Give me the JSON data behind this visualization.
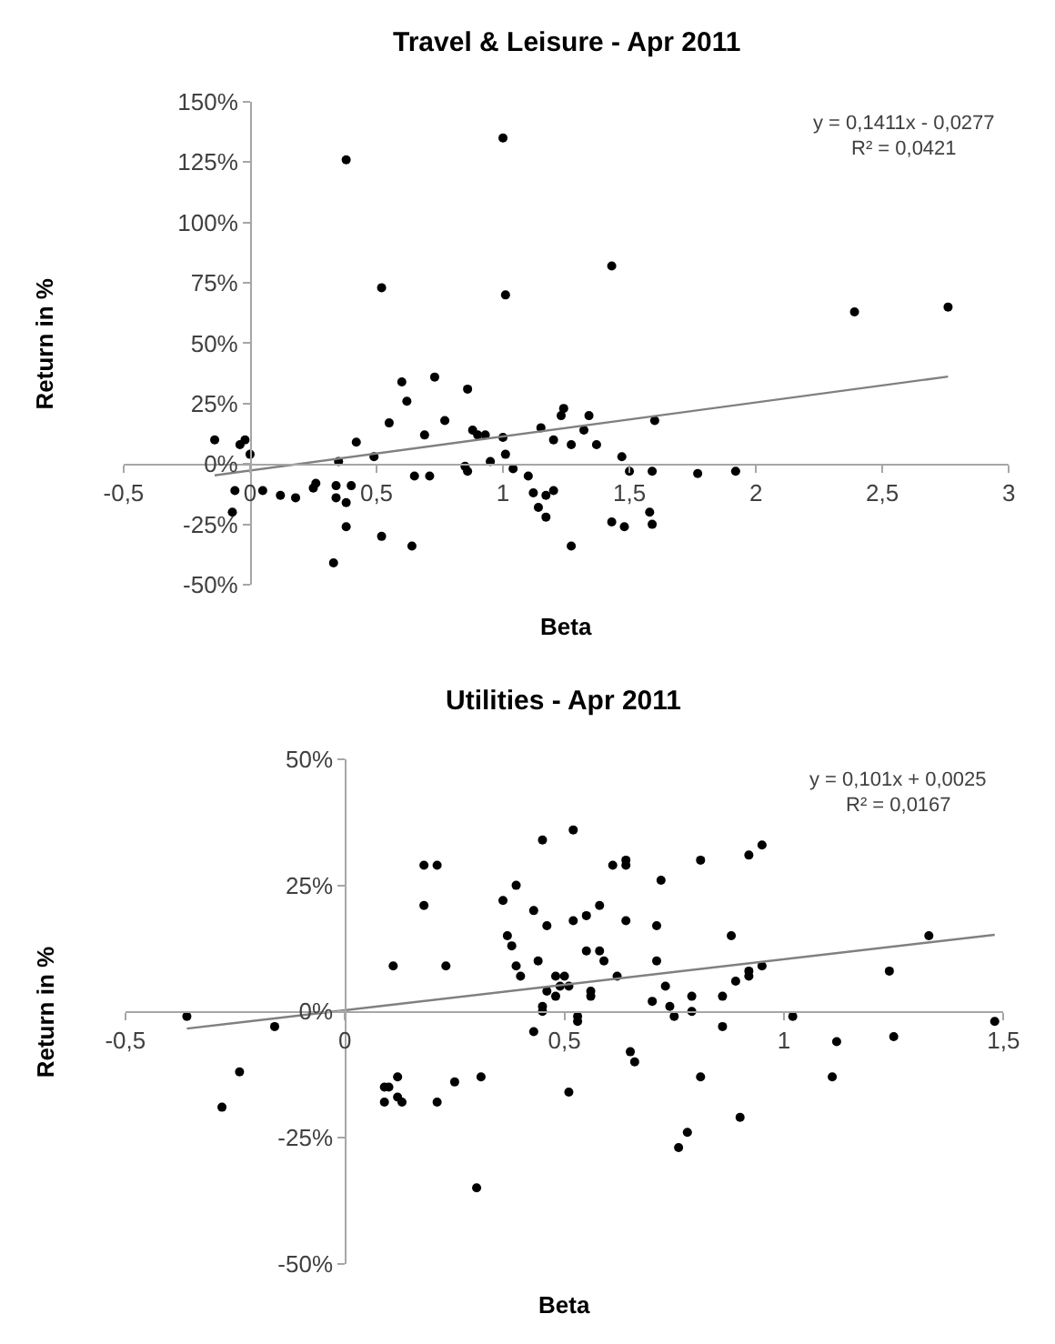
{
  "chart_data": [
    {
      "type": "scatter",
      "title": "Travel & Leisure - Apr 2011",
      "xlabel": "Beta",
      "ylabel": "Return in %",
      "grid": false,
      "line_style": "solid",
      "annotations": [
        "y = 0,1411x - 0,0277",
        "R² = 0,0421"
      ],
      "xlim": [
        -0.5,
        3
      ],
      "xticks": [
        {
          "value": -0.5,
          "label": "-0,5"
        },
        0,
        {
          "value": 0.5,
          "label": "0,5"
        },
        1,
        {
          "value": 1.5,
          "label": "1,5"
        },
        2,
        {
          "value": 2.5,
          "label": "2,5"
        },
        3
      ],
      "ylim": [
        -50,
        150
      ],
      "yticks": [
        {
          "value": -50,
          "label": "-50%"
        },
        {
          "value": -25,
          "label": "-25%"
        },
        {
          "value": 0,
          "label": "0%"
        },
        {
          "value": 25,
          "label": "25%"
        },
        {
          "value": 50,
          "label": "50%"
        },
        {
          "value": 75,
          "label": "75%"
        },
        {
          "value": 100,
          "label": "100%"
        },
        {
          "value": 125,
          "label": "125%"
        },
        {
          "value": 150,
          "label": "150%"
        }
      ],
      "series": [
        {
          "marker": "circle",
          "color": "#000000",
          "x": [
            -0.14,
            -0.06,
            -0.07,
            -0.04,
            -0.02,
            0,
            0.05,
            0.12,
            0.18,
            0.25,
            0.26,
            0.34,
            0.34,
            0.35,
            0.38,
            0.38,
            0.38,
            0.4,
            0.42,
            0.33,
            0.49,
            0.52,
            0.52,
            0.55,
            0.6,
            0.62,
            0.65,
            0.64,
            0.69,
            0.71,
            0.73,
            0.77,
            0.85,
            0.86,
            0.86,
            0.88,
            0.9,
            0.93,
            0.95,
            1,
            1.01,
            1,
            1.01,
            1.04,
            1.1,
            1.12,
            1.14,
            1.15,
            1.17,
            1.17,
            1.2,
            1.2,
            1.23,
            1.24,
            1.27,
            1.27,
            1.32,
            1.34,
            1.37,
            1.43,
            1.43,
            1.47,
            1.48,
            1.5,
            1.59,
            1.6,
            1.58,
            1.59,
            1.77,
            1.92,
            2.39,
            2.76
          ],
          "values": [
            10,
            -11,
            -20,
            8,
            10,
            4,
            -11,
            -13,
            -14,
            -10,
            -8,
            -9,
            -14,
            1,
            126,
            -16,
            -26,
            -9,
            9,
            -41,
            3,
            -30,
            73,
            17,
            34,
            26,
            -5,
            -34,
            12,
            -5,
            36,
            18,
            -1,
            -3,
            31,
            14,
            12,
            12,
            1,
            135,
            70,
            11,
            4,
            -2,
            -5,
            -12,
            -18,
            15,
            -13,
            -22,
            10,
            -11,
            20,
            23,
            8,
            -34,
            14,
            20,
            8,
            82,
            -24,
            3,
            -26,
            -3,
            -3,
            18,
            -20,
            -25,
            -4,
            -3,
            63,
            65
          ]
        },
        {
          "type": "line",
          "marker": "none",
          "color": "#808080",
          "x": [
            -0.14,
            2.76
          ],
          "values": [
            -4.7,
            36.2
          ]
        }
      ]
    },
    {
      "type": "scatter",
      "title": "Utilities - Apr 2011",
      "xlabel": "Beta",
      "ylabel": "Return in %",
      "grid": false,
      "line_style": "solid",
      "annotations": [
        "y = 0,101x + 0,0025",
        "R² = 0,0167"
      ],
      "xlim": [
        -0.5,
        1.5
      ],
      "xticks": [
        {
          "value": -0.5,
          "label": "-0,5"
        },
        0,
        {
          "value": 0.5,
          "label": "0,5"
        },
        1,
        {
          "value": 1.5,
          "label": "1,5"
        }
      ],
      "ylim": [
        -50,
        50
      ],
      "yticks": [
        {
          "value": -50,
          "label": "-50%"
        },
        {
          "value": -25,
          "label": "-25%"
        },
        {
          "value": 0,
          "label": "0%"
        },
        {
          "value": 25,
          "label": "25%"
        },
        {
          "value": 50,
          "label": "50%"
        }
      ],
      "series": [
        {
          "marker": "circle",
          "color": "#000000",
          "x": [
            -0.36,
            -0.28,
            -0.24,
            -0.16,
            0.11,
            0.09,
            0.1,
            0.09,
            0.12,
            0.12,
            0.13,
            0.18,
            0.21,
            0.18,
            0.21,
            0.23,
            0.25,
            0.31,
            0.3,
            0.36,
            0.37,
            0.38,
            0.39,
            0.39,
            0.4,
            0.43,
            0.43,
            0.44,
            0.45,
            0.45,
            0.45,
            0.46,
            0.46,
            0.48,
            0.48,
            0.49,
            0.5,
            0.52,
            0.51,
            0.51,
            0.52,
            0.53,
            0.53,
            0.55,
            0.55,
            0.56,
            0.56,
            0.58,
            0.58,
            0.59,
            0.61,
            0.62,
            0.64,
            0.64,
            0.64,
            0.65,
            0.66,
            0.72,
            0.71,
            0.71,
            0.7,
            0.73,
            0.74,
            0.75,
            0.79,
            0.79,
            0.81,
            0.81,
            0.86,
            0.86,
            0.88,
            0.89,
            0.92,
            0.92,
            0.92,
            0.95,
            0.95,
            0.9,
            0.78,
            0.76,
            1.02,
            1.12,
            1.11,
            1.24,
            1.25,
            1.33,
            1.48
          ],
          "values": [
            -1,
            -19,
            -12,
            -3,
            9,
            -15,
            -15,
            -18,
            -13,
            -17,
            -18,
            29,
            29,
            21,
            -18,
            9,
            -14,
            -13,
            -35,
            22,
            15,
            13,
            25,
            9,
            7,
            20,
            -4,
            10,
            1,
            0,
            34,
            4,
            17,
            3,
            7,
            5,
            7,
            36,
            5,
            -16,
            18,
            -1,
            -2,
            19,
            12,
            4,
            3,
            21,
            12,
            10,
            29,
            7,
            30,
            29,
            18,
            -8,
            -10,
            26,
            17,
            10,
            2,
            5,
            1,
            -1,
            3,
            0,
            30,
            -13,
            -3,
            3,
            15,
            6,
            8,
            7,
            31,
            33,
            9,
            -21,
            -24,
            -27,
            -1,
            -6,
            -13,
            8,
            -5,
            15,
            -2
          ]
        },
        {
          "type": "line",
          "marker": "none",
          "color": "#808080",
          "x": [
            -0.36,
            1.48
          ],
          "values": [
            -3.4,
            15.2
          ]
        }
      ]
    }
  ]
}
